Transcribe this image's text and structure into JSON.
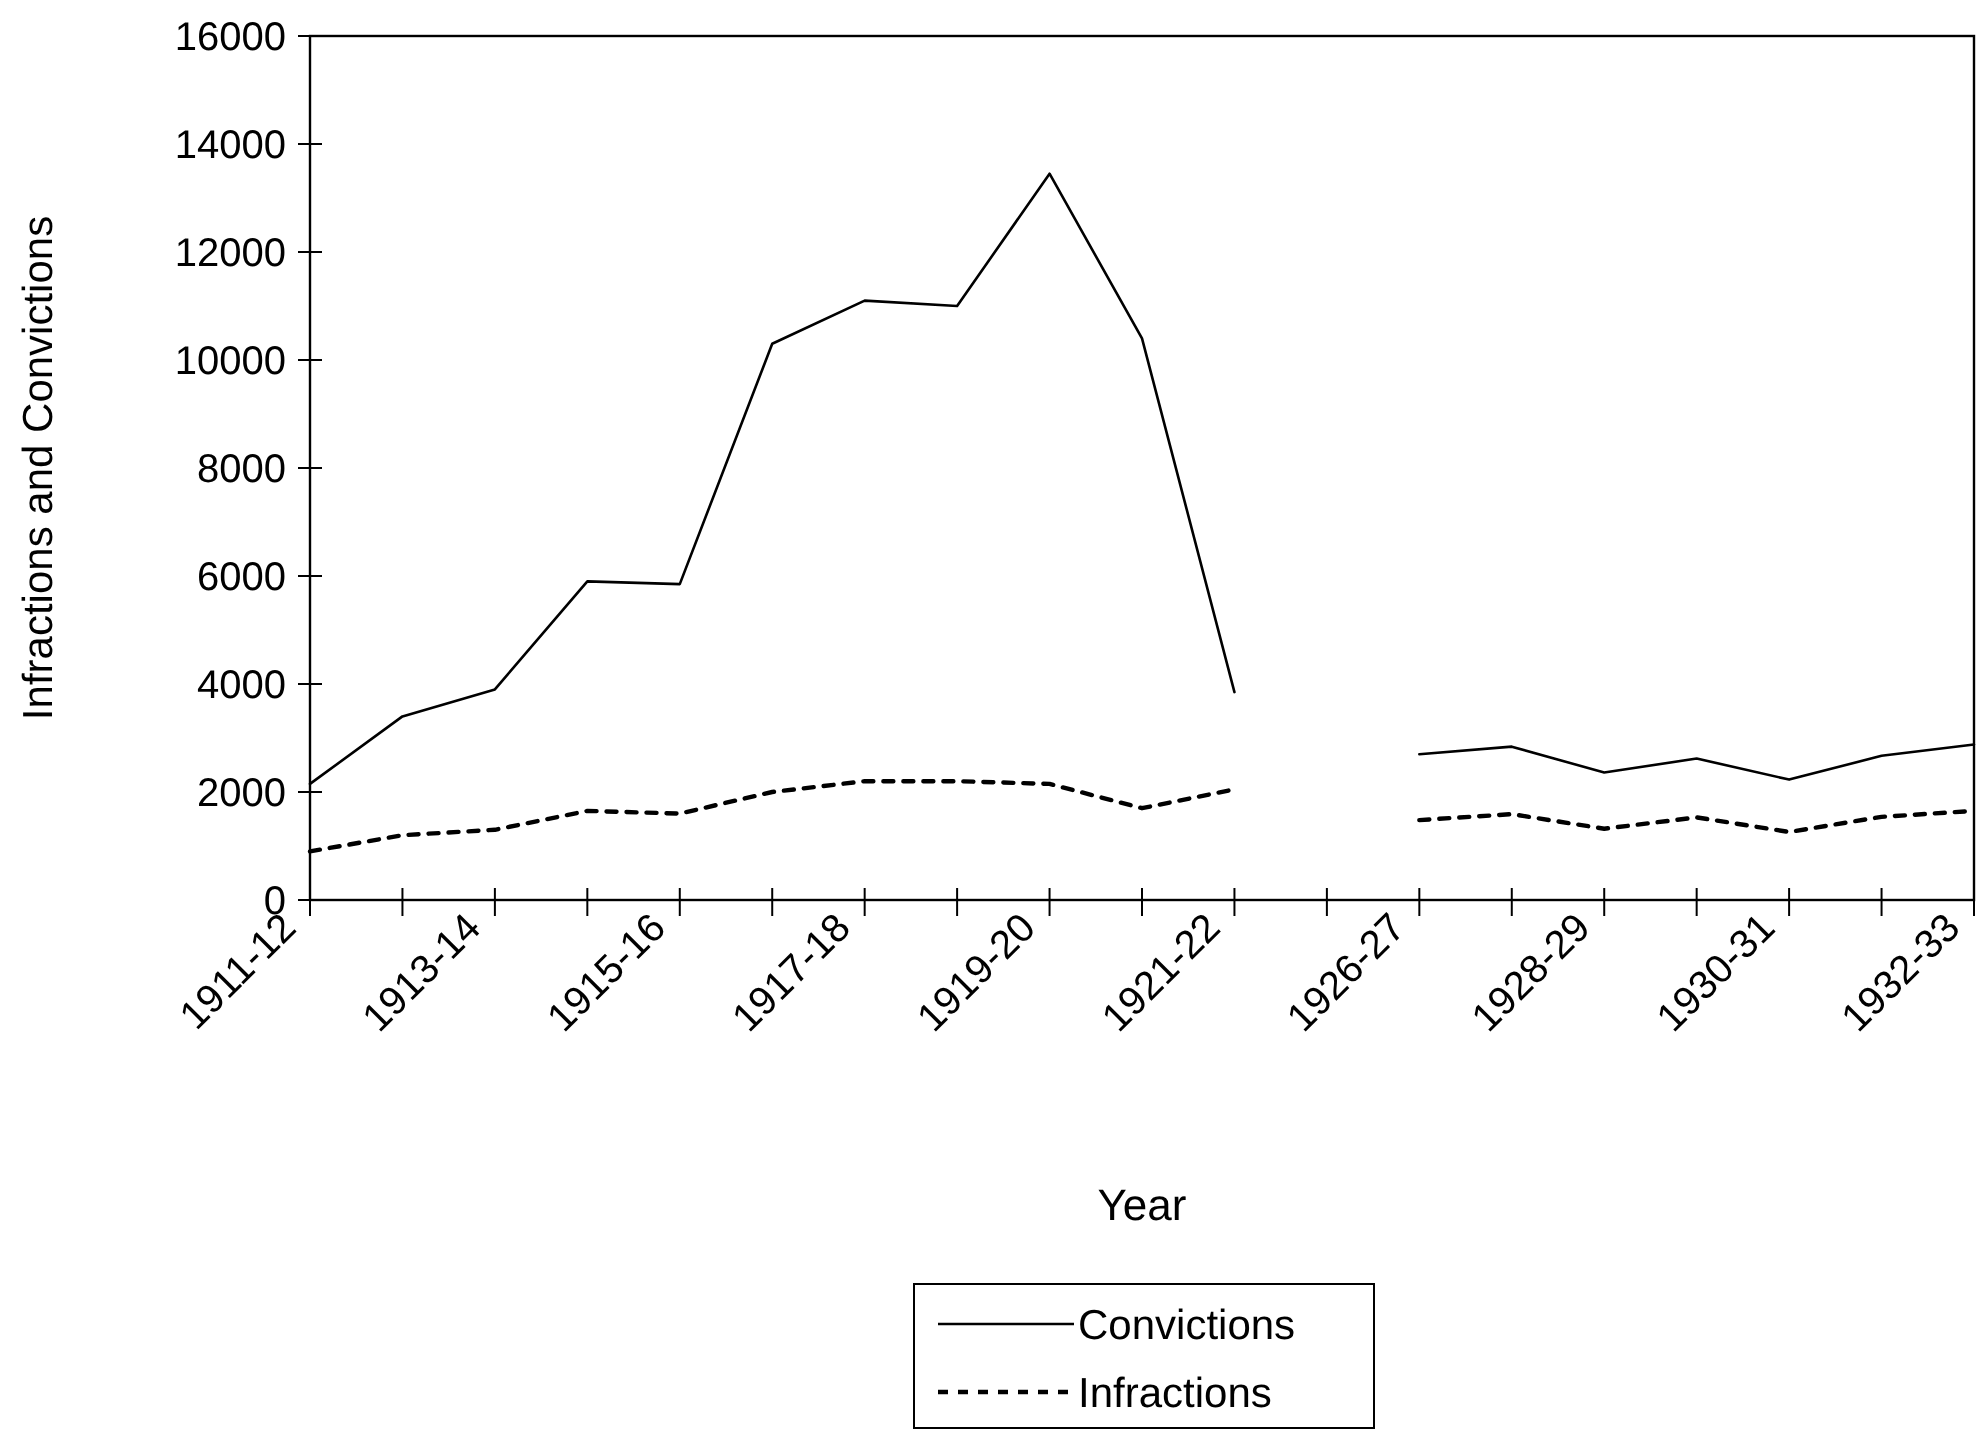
{
  "chart_data": {
    "type": "line",
    "xlabel": "Year",
    "ylabel": "Infractions and Convictions",
    "categories": [
      "1911-12",
      null,
      "1913-14",
      null,
      "1915-16",
      null,
      "1917-18",
      null,
      "1919-20",
      null,
      "1921-22",
      null,
      "1926-27",
      null,
      "1928-29",
      null,
      "1930-31",
      null,
      "1932-33"
    ],
    "series": [
      {
        "name": "Convictions",
        "color": "#000000",
        "line_style": "solid",
        "values": [
          2150,
          3400,
          3900,
          5900,
          5850,
          10300,
          11100,
          11000,
          13450,
          10400,
          3850,
          null,
          2700,
          2840,
          2360,
          2620,
          2230,
          2670,
          2880
        ]
      },
      {
        "name": "Infractions",
        "color": "#000000",
        "line_style": "dashed",
        "values": [
          900,
          1200,
          1300,
          1650,
          1600,
          2000,
          2200,
          2200,
          2150,
          1700,
          2050,
          null,
          1480,
          1590,
          1320,
          1530,
          1260,
          1540,
          1650
        ]
      }
    ],
    "ylim": [
      0,
      16000
    ],
    "yticks": [
      0,
      2000,
      4000,
      6000,
      8000,
      10000,
      12000,
      14000,
      16000
    ],
    "grid": false,
    "legend": "bottom",
    "marker": "none"
  }
}
